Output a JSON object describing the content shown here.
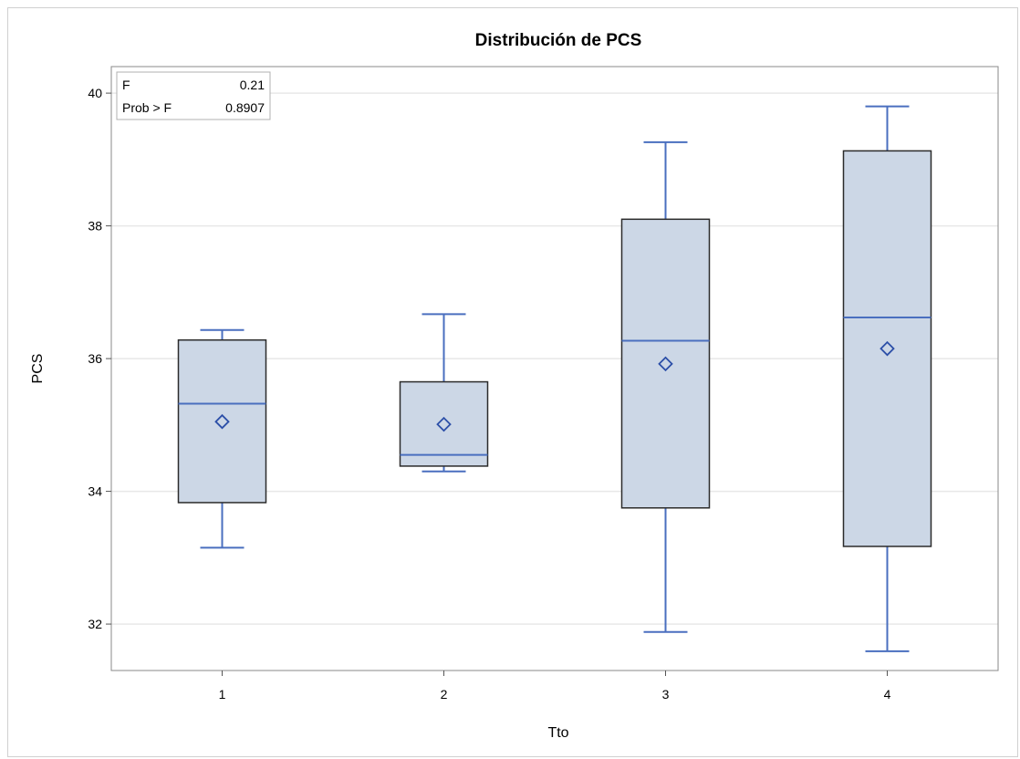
{
  "chart_data": {
    "type": "box",
    "title": "Distribución de PCS",
    "xlabel": "Tto",
    "ylabel": "PCS",
    "ylim": [
      31.3,
      40.4
    ],
    "yticks": [
      32,
      34,
      36,
      38,
      40
    ],
    "grid": true,
    "categories": [
      "1",
      "2",
      "3",
      "4"
    ],
    "boxes": [
      {
        "category": "1",
        "min": 33.15,
        "q1": 33.83,
        "median": 35.32,
        "q3": 36.28,
        "max": 36.43,
        "mean": 35.05
      },
      {
        "category": "2",
        "min": 34.3,
        "q1": 34.38,
        "median": 34.55,
        "q3": 35.65,
        "max": 36.67,
        "mean": 35.01
      },
      {
        "category": "3",
        "min": 31.88,
        "q1": 33.75,
        "median": 36.27,
        "q3": 38.1,
        "max": 39.26,
        "mean": 35.92
      },
      {
        "category": "4",
        "min": 31.59,
        "q1": 33.17,
        "median": 36.62,
        "q3": 39.13,
        "max": 39.8,
        "mean": 36.15
      }
    ],
    "inset": {
      "rows": [
        {
          "label": "F",
          "value": "0.21"
        },
        {
          "label": "Prob > F",
          "value": "0.8907"
        }
      ],
      "placement": "top-left"
    },
    "colors": {
      "box_fill": "#ccd7e6",
      "box_edge": "#2b2b2b",
      "whisker": "#4a6fbf",
      "median": "#4a6fbf",
      "mean_marker": "#2c4fa8",
      "grid": "#e8e8e8"
    }
  }
}
